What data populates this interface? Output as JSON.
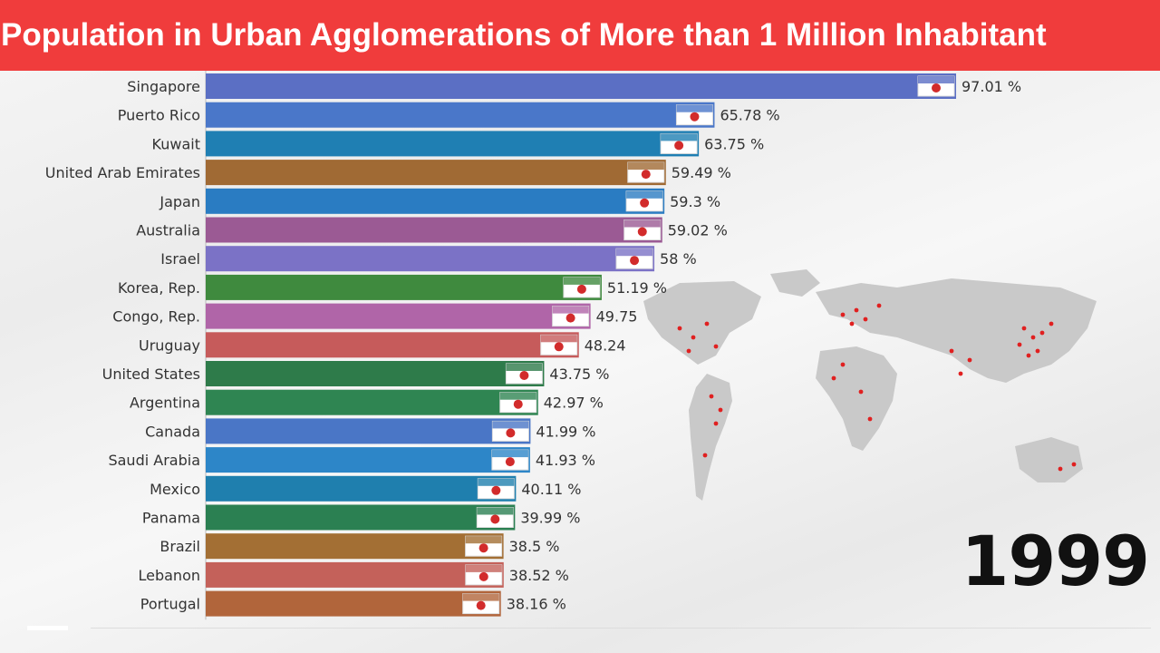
{
  "title": "Population in Urban Agglomerations of More than 1 Million Inhabitant",
  "year": "1999",
  "icons": {
    "background": "world-map-icon",
    "flags": "country-flag-icon"
  },
  "colors": {
    "title_bg": "#f03c3c",
    "map_land": "#c9c9c9",
    "city_dot": "#e02020"
  },
  "chart_data": {
    "type": "bar",
    "orientation": "horizontal",
    "title": "Population in Urban Agglomerations of More than 1 Million Inhabitant",
    "xlim": [
      0,
      100
    ],
    "grid": false,
    "categories": [
      "Singapore",
      "Puerto Rico",
      "Kuwait",
      "United Arab Emirates",
      "Japan",
      "Australia",
      "Israel",
      "Korea, Rep.",
      "Congo, Rep.",
      "Uruguay",
      "United States",
      "Argentina",
      "Canada",
      "Saudi Arabia",
      "Mexico",
      "Panama",
      "Brazil",
      "Lebanon",
      "Portugal"
    ],
    "values": [
      97.01,
      65.78,
      63.75,
      59.49,
      59.3,
      59.02,
      58,
      51.19,
      49.75,
      48.24,
      43.75,
      42.97,
      41.99,
      41.93,
      40.11,
      39.99,
      38.5,
      38.52,
      38.16
    ],
    "value_labels": [
      "97.01 %",
      "65.78 %",
      "63.75 %",
      "59.49 %",
      "59.3 %",
      "59.02 %",
      "58 %",
      "51.19 %",
      "49.75",
      "48.24",
      "43.75 %",
      "42.97 %",
      "41.99 %",
      "41.93 %",
      "40.11 %",
      "39.99 %",
      "38.5 %",
      "38.52 %",
      "38.16 %"
    ],
    "bar_colors": [
      "#5b6fc4",
      "#4a77c9",
      "#1f7fb3",
      "#a06a34",
      "#2a7cc2",
      "#9b5a94",
      "#7b72c6",
      "#3f8a3e",
      "#b065a8",
      "#c65b5b",
      "#2e7b4a",
      "#2f8552",
      "#4a76c6",
      "#2d86c8",
      "#1f7fae",
      "#2b8052",
      "#a36f34",
      "#c4615a",
      "#b1653b"
    ]
  }
}
